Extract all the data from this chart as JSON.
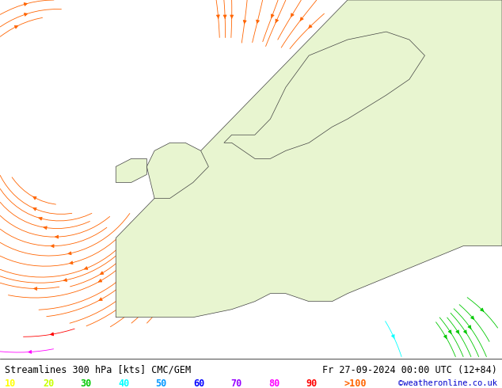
{
  "title_left": "Streamlines 300 hPa [kts] CMC/GEM",
  "title_right": "Fr 27-09-2024 00:00 UTC (12+84)",
  "credit": "©weatheronline.co.uk",
  "legend_labels": [
    "10",
    "20",
    "30",
    "40",
    "50",
    "60",
    "70",
    "80",
    "90",
    ">100"
  ],
  "legend_colors": [
    "#ffff00",
    "#c8ff00",
    "#00c800",
    "#00ffff",
    "#0096ff",
    "#0000ff",
    "#9600ff",
    "#ff00ff",
    "#ff0000",
    "#ff6400"
  ],
  "bg_color": "#ffffff",
  "map_land_color": "#e8f5d0",
  "map_sea_color": "#ffffff",
  "streamline_speed_colors": {
    "10": "#ffff00",
    "20": "#c8ff00",
    "30": "#00c800",
    "40": "#00ffff",
    "50": "#0096ff",
    "60": "#0000ff",
    "70": "#9600ff",
    "80": "#ff00ff",
    "90": "#ff0000",
    "100": "#ff6400"
  },
  "domain": {
    "lon_min": -25,
    "lon_max": 40,
    "lat_min": 30,
    "lat_max": 75
  },
  "figsize": [
    6.34,
    4.9
  ],
  "dpi": 100
}
